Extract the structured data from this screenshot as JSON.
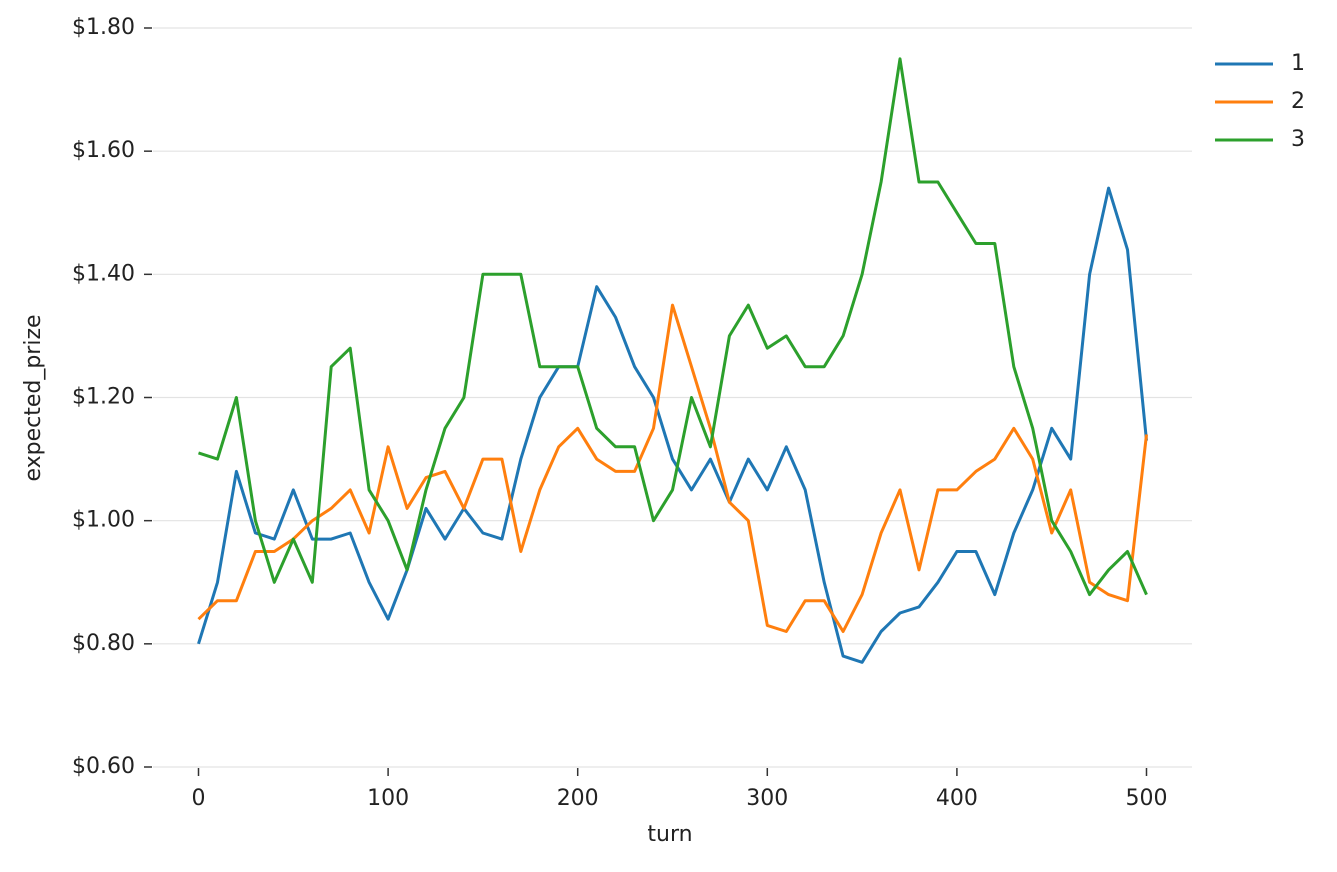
{
  "chart_data": {
    "type": "line",
    "x_label": "turn",
    "y_label": "expected_prize",
    "x": [
      0,
      10,
      20,
      30,
      40,
      50,
      60,
      70,
      80,
      90,
      100,
      110,
      120,
      130,
      140,
      150,
      160,
      170,
      180,
      190,
      200,
      210,
      220,
      230,
      240,
      250,
      260,
      270,
      280,
      290,
      300,
      310,
      320,
      330,
      340,
      350,
      360,
      370,
      380,
      390,
      400,
      410,
      420,
      430,
      440,
      450,
      460,
      470,
      480,
      490,
      500
    ],
    "series": [
      {
        "name": "1",
        "color": "#1f77b4",
        "values": [
          0.8,
          0.9,
          1.08,
          0.98,
          0.97,
          1.05,
          0.97,
          0.97,
          0.98,
          0.9,
          0.84,
          0.92,
          1.02,
          0.97,
          1.02,
          0.98,
          0.97,
          1.1,
          1.2,
          1.25,
          1.25,
          1.38,
          1.33,
          1.25,
          1.2,
          1.1,
          1.05,
          1.1,
          1.03,
          1.1,
          1.05,
          1.12,
          1.05,
          0.9,
          0.78,
          0.77,
          0.82,
          0.85,
          0.86,
          0.9,
          0.95,
          0.95,
          0.88,
          0.98,
          1.05,
          1.15,
          1.1,
          1.4,
          1.54,
          1.44,
          1.13
        ]
      },
      {
        "name": "2",
        "color": "#ff7f0e",
        "values": [
          0.84,
          0.87,
          0.87,
          0.95,
          0.95,
          0.97,
          1.0,
          1.02,
          1.05,
          0.98,
          1.12,
          1.02,
          1.07,
          1.08,
          1.02,
          1.1,
          1.1,
          0.95,
          1.05,
          1.12,
          1.15,
          1.1,
          1.08,
          1.08,
          1.15,
          1.35,
          1.25,
          1.15,
          1.03,
          1.0,
          0.83,
          0.82,
          0.87,
          0.87,
          0.82,
          0.88,
          0.98,
          1.05,
          0.92,
          1.05,
          1.05,
          1.08,
          1.1,
          1.15,
          1.1,
          0.98,
          1.05,
          0.9,
          0.88,
          0.87,
          1.14
        ]
      },
      {
        "name": "3",
        "color": "#2ca02c",
        "values": [
          1.11,
          1.1,
          1.2,
          1.0,
          0.9,
          0.97,
          0.9,
          1.25,
          1.28,
          1.05,
          1.0,
          0.92,
          1.05,
          1.15,
          1.2,
          1.4,
          1.4,
          1.4,
          1.25,
          1.25,
          1.25,
          1.15,
          1.12,
          1.12,
          1.0,
          1.05,
          1.2,
          1.12,
          1.3,
          1.35,
          1.28,
          1.3,
          1.25,
          1.25,
          1.3,
          1.4,
          1.55,
          1.75,
          1.55,
          1.55,
          1.5,
          1.45,
          1.45,
          1.25,
          1.15,
          1.0,
          0.95,
          0.88,
          0.92,
          0.95,
          0.88
        ]
      }
    ],
    "xlim": [
      -24,
      524
    ],
    "ylim": [
      0.6,
      1.8
    ],
    "xticks": [
      0,
      100,
      200,
      300,
      400,
      500
    ],
    "yticks": [
      {
        "value": 0.6,
        "label": "$0.60"
      },
      {
        "value": 0.8,
        "label": "$0.80"
      },
      {
        "value": 1.0,
        "label": "$1.00"
      },
      {
        "value": 1.2,
        "label": "$1.20"
      },
      {
        "value": 1.4,
        "label": "$1.40"
      },
      {
        "value": 1.6,
        "label": "$1.60"
      },
      {
        "value": 1.8,
        "label": "$1.80"
      }
    ],
    "grid": true,
    "legend": "upper right outside"
  }
}
